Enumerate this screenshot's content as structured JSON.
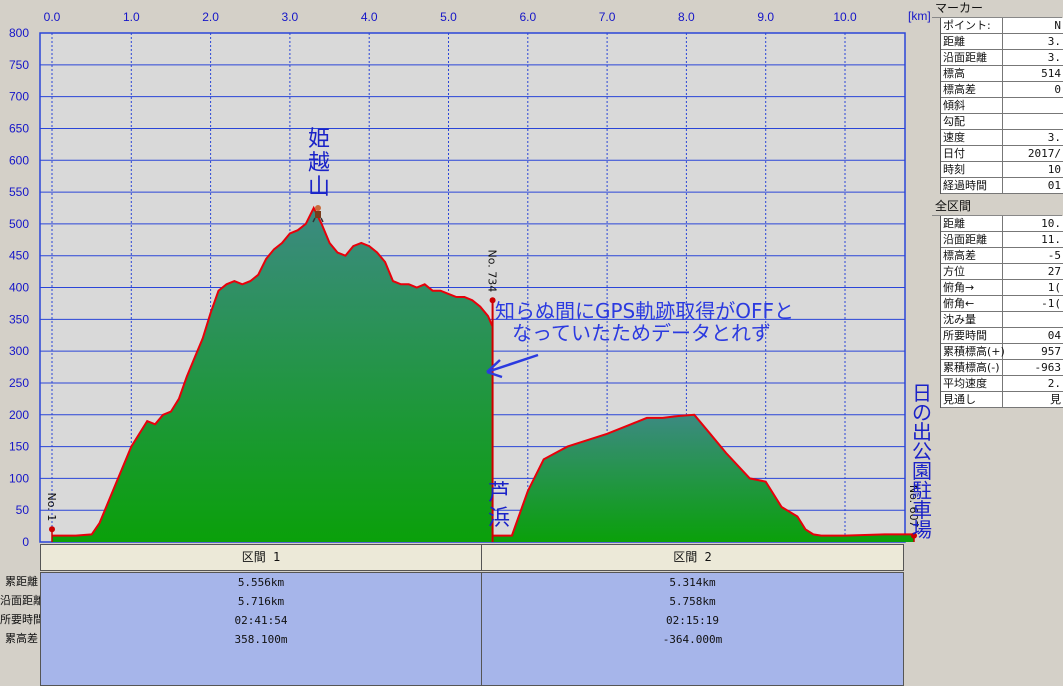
{
  "chart_data": {
    "type": "area",
    "xunit": "[km]",
    "xlim": [
      0.0,
      10.99
    ],
    "ylim": [
      0,
      800
    ],
    "x_ticks": [
      "0.0",
      "1.0",
      "2.0",
      "3.0",
      "4.0",
      "5.0",
      "6.0",
      "7.0",
      "8.0",
      "9.0",
      "10.0"
    ],
    "y_ticks": [
      "0",
      "50",
      "100",
      "150",
      "200",
      "250",
      "300",
      "350",
      "400",
      "450",
      "500",
      "550",
      "600",
      "650",
      "700",
      "750",
      "800"
    ],
    "series": [
      {
        "x": [
          0.0,
          0.3,
          0.5,
          0.6,
          0.8,
          1.0,
          1.2,
          1.3,
          1.4,
          1.5,
          1.6,
          1.7,
          1.8,
          1.9,
          2.0,
          2.1,
          2.2,
          2.3,
          2.4,
          2.5,
          2.6,
          2.7,
          2.8,
          2.9,
          3.0,
          3.1,
          3.2,
          3.3,
          3.4,
          3.5,
          3.6,
          3.7,
          3.8,
          3.9,
          4.0,
          4.1,
          4.2,
          4.3,
          4.4,
          4.5,
          4.6,
          4.7,
          4.8,
          4.9,
          5.0,
          5.1,
          5.2,
          5.3,
          5.4,
          5.5,
          5.55
        ],
        "y": [
          10,
          10,
          12,
          30,
          90,
          150,
          190,
          185,
          200,
          205,
          225,
          260,
          290,
          320,
          360,
          395,
          405,
          410,
          405,
          410,
          420,
          445,
          460,
          470,
          485,
          490,
          500,
          525,
          500,
          470,
          455,
          450,
          465,
          470,
          465,
          455,
          440,
          410,
          405,
          405,
          400,
          405,
          395,
          395,
          390,
          385,
          385,
          380,
          370,
          355,
          340
        ]
      },
      {
        "x": [
          5.556,
          5.8,
          6.0,
          6.2,
          6.5,
          7.0,
          7.3,
          7.5,
          7.7,
          7.9,
          8.1,
          8.3,
          8.5,
          8.8,
          9.0,
          9.2,
          9.4,
          9.5,
          9.6,
          9.7,
          10.0,
          10.5,
          10.87
        ],
        "y": [
          10,
          10,
          80,
          130,
          150,
          170,
          185,
          195,
          195,
          198,
          200,
          170,
          140,
          100,
          95,
          55,
          40,
          20,
          12,
          10,
          10,
          12,
          12
        ]
      }
    ],
    "markers": [
      {
        "label": "No. 1",
        "x": 0.0,
        "y": 20
      },
      {
        "label": "No. 734",
        "x": 5.556,
        "y": 380
      },
      {
        "label": "No. 607",
        "x": 10.87,
        "y": 10
      }
    ],
    "annotations": {
      "peak": "姫越山",
      "note_line1": "知らぬ間にGPS軌跡取得がOFFと",
      "note_line2": "なっていたためデータとれず",
      "mid": "芦浜",
      "end": "日の出公園駐車場"
    },
    "colors": {
      "track": "#e8000a",
      "fill_top": "#3c8a82",
      "fill_bottom": "#0aa00a",
      "grid": "#2a45d8",
      "plot_bg": "#d9d9d9"
    }
  },
  "segments": {
    "headers": [
      "区間 1",
      "区間 2"
    ],
    "row_labels": [
      "累距離",
      "沿面距離",
      "所要時間",
      "累高差"
    ],
    "seg1": [
      "5.556km",
      "5.716km",
      "02:41:54",
      "358.100m"
    ],
    "seg2": [
      "5.314km",
      "5.758km",
      "02:15:19",
      "-364.000m"
    ]
  },
  "side": {
    "marker_title": "マーカー",
    "marker_rows": [
      {
        "k": "ポイント:",
        "v": "N"
      },
      {
        "k": "距離",
        "v": "3."
      },
      {
        "k": "沿面距離",
        "v": "3."
      },
      {
        "k": "標高",
        "v": "514"
      },
      {
        "k": "標高差",
        "v": "0"
      },
      {
        "k": "傾斜",
        "v": ""
      },
      {
        "k": "勾配",
        "v": ""
      },
      {
        "k": "速度",
        "v": "3."
      },
      {
        "k": "日付",
        "v": "2017/"
      },
      {
        "k": "時刻",
        "v": "10"
      },
      {
        "k": "経過時間",
        "v": "01"
      }
    ],
    "total_title": "全区間",
    "total_rows": [
      {
        "k": "距離",
        "v": "10."
      },
      {
        "k": "沿面距離",
        "v": "11."
      },
      {
        "k": "標高差",
        "v": "-5"
      },
      {
        "k": "方位",
        "v": "27"
      },
      {
        "k": "俯角→",
        "v": "1("
      },
      {
        "k": "俯角←",
        "v": "-1("
      },
      {
        "k": "沈み量",
        "v": ""
      },
      {
        "k": "所要時間",
        "v": "04"
      },
      {
        "k": "累積標高(+)",
        "v": "957"
      },
      {
        "k": "累積標高(-)",
        "v": "-963"
      },
      {
        "k": "平均速度",
        "v": "2."
      },
      {
        "k": "見通し",
        "v": "見"
      }
    ]
  }
}
